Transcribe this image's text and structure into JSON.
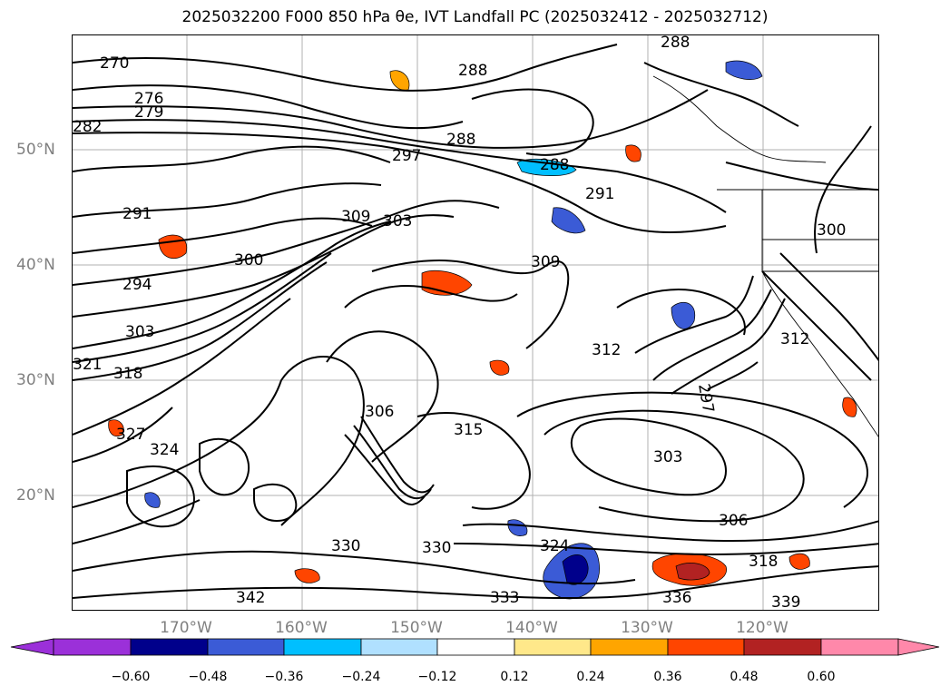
{
  "title": "2025032200 F000 850 hPa θe, IVT Landfall PC (2025032412 - 2025032712)",
  "lat_labels": [
    "50°N",
    "40°N",
    "30°N",
    "20°N"
  ],
  "lon_labels": [
    "170°W",
    "160°W",
    "150°W",
    "140°W",
    "130°W",
    "120°W"
  ],
  "contour_labels": [
    "270",
    "276",
    "279",
    "282",
    "288",
    "288",
    "288",
    "288",
    "291",
    "291",
    "294",
    "297",
    "300",
    "300",
    "303",
    "303",
    "303",
    "306",
    "306",
    "309",
    "309",
    "312",
    "315",
    "318",
    "318",
    "321",
    "324",
    "327",
    "330",
    "333",
    "336",
    "339",
    "342",
    "297",
    "312",
    "324",
    "330"
  ],
  "colorbar": {
    "ticks": [
      "−0.60",
      "−0.48",
      "−0.36",
      "−0.24",
      "−0.12",
      "0.12",
      "0.24",
      "0.36",
      "0.48",
      "0.60"
    ],
    "colors": [
      "#9b30d9",
      "#00008b",
      "#3b5bd6",
      "#00bfff",
      "#b0e0ff",
      "#ffffff",
      "#ffe88a",
      "#ffa500",
      "#ff4500",
      "#b22222",
      "#ff88aa"
    ]
  }
}
